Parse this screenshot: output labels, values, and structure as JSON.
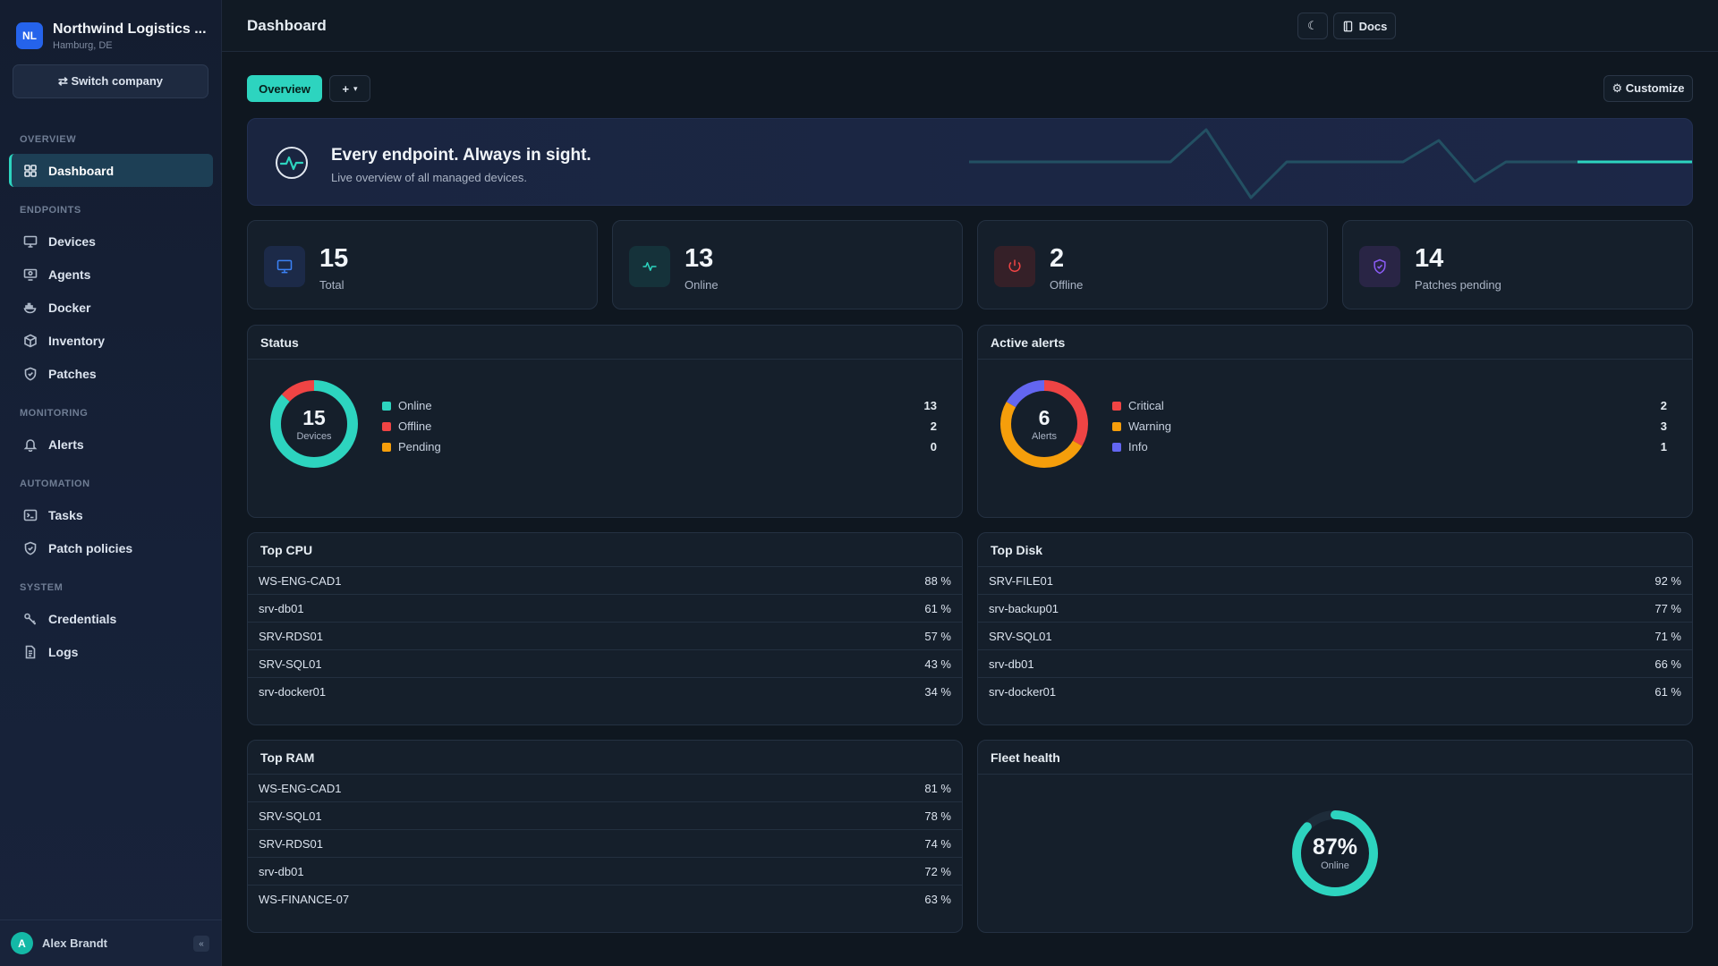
{
  "company": {
    "initials": "NL",
    "name": "Northwind Logistics ...",
    "location": "Hamburg, DE"
  },
  "switch_company": "⇄ Switch company",
  "nav": {
    "sections": [
      {
        "title": "OVERVIEW",
        "items": [
          {
            "label": "Dashboard",
            "icon": "grid-icon",
            "active": true
          }
        ]
      },
      {
        "title": "ENDPOINTS",
        "items": [
          {
            "label": "Devices",
            "icon": "monitor-icon"
          },
          {
            "label": "Agents",
            "icon": "agent-icon"
          },
          {
            "label": "Docker",
            "icon": "docker-icon"
          },
          {
            "label": "Inventory",
            "icon": "box-icon"
          },
          {
            "label": "Patches",
            "icon": "shield-icon"
          }
        ]
      },
      {
        "title": "MONITORING",
        "items": [
          {
            "label": "Alerts",
            "icon": "bell-icon"
          }
        ]
      },
      {
        "title": "AUTOMATION",
        "items": [
          {
            "label": "Tasks",
            "icon": "terminal-icon"
          },
          {
            "label": "Patch policies",
            "icon": "shield-check-icon"
          }
        ]
      },
      {
        "title": "SYSTEM",
        "items": [
          {
            "label": "Credentials",
            "icon": "key-icon"
          },
          {
            "label": "Logs",
            "icon": "file-icon"
          }
        ]
      }
    ]
  },
  "user": {
    "initial": "A",
    "name": "Alex Brandt",
    "collapse": "«"
  },
  "header": {
    "title": "Dashboard",
    "theme_icon": "☾",
    "docs_label": "Docs"
  },
  "tabs": {
    "overview": "Overview",
    "add": "+",
    "add_caret": "▾"
  },
  "customize": "⚙ Customize",
  "hero": {
    "title": "Every endpoint. Always in sight.",
    "subtitle": "Live overview of all managed devices."
  },
  "stats": [
    {
      "value": "15",
      "label": "Total",
      "icon": "monitor-icon",
      "color": "#3b82f6"
    },
    {
      "value": "13",
      "label": "Online",
      "icon": "pulse-icon",
      "color": "#2dd4bf"
    },
    {
      "value": "2",
      "label": "Offline",
      "icon": "power-icon",
      "color": "#ef4444"
    },
    {
      "value": "14",
      "label": "Patches pending",
      "icon": "shield-icon",
      "color": "#8b5cf6"
    }
  ],
  "status": {
    "title": "Status",
    "total": "15",
    "caption": "Devices",
    "items": [
      {
        "label": "Online",
        "value": 13,
        "color": "#2dd4bf"
      },
      {
        "label": "Offline",
        "value": 2,
        "color": "#ef4444"
      },
      {
        "label": "Pending",
        "value": 0,
        "color": "#f59e0b"
      }
    ]
  },
  "alerts": {
    "title": "Active alerts",
    "total": "6",
    "caption": "Alerts",
    "items": [
      {
        "label": "Critical",
        "value": 2,
        "color": "#ef4444"
      },
      {
        "label": "Warning",
        "value": 3,
        "color": "#f59e0b"
      },
      {
        "label": "Info",
        "value": 1,
        "color": "#6366f1"
      }
    ]
  },
  "top_cpu": {
    "title": "Top CPU",
    "rows": [
      {
        "name": "WS-ENG-CAD1",
        "value": "88 %"
      },
      {
        "name": "srv-db01",
        "value": "61 %"
      },
      {
        "name": "SRV-RDS01",
        "value": "57 %"
      },
      {
        "name": "SRV-SQL01",
        "value": "43 %"
      },
      {
        "name": "srv-docker01",
        "value": "34 %"
      }
    ]
  },
  "top_disk": {
    "title": "Top Disk",
    "rows": [
      {
        "name": "SRV-FILE01",
        "value": "92 %"
      },
      {
        "name": "srv-backup01",
        "value": "77 %"
      },
      {
        "name": "SRV-SQL01",
        "value": "71 %"
      },
      {
        "name": "srv-db01",
        "value": "66 %"
      },
      {
        "name": "srv-docker01",
        "value": "61 %"
      }
    ]
  },
  "top_ram": {
    "title": "Top RAM",
    "rows": [
      {
        "name": "WS-ENG-CAD1",
        "value": "81 %"
      },
      {
        "name": "SRV-SQL01",
        "value": "78 %"
      },
      {
        "name": "SRV-RDS01",
        "value": "74 %"
      },
      {
        "name": "srv-db01",
        "value": "72 %"
      },
      {
        "name": "WS-FINANCE-07",
        "value": "63 %"
      }
    ]
  },
  "fleet_health": {
    "title": "Fleet health",
    "percent": 87,
    "percent_label": "87%",
    "caption": "Online",
    "color": "#2dd4bf"
  }
}
